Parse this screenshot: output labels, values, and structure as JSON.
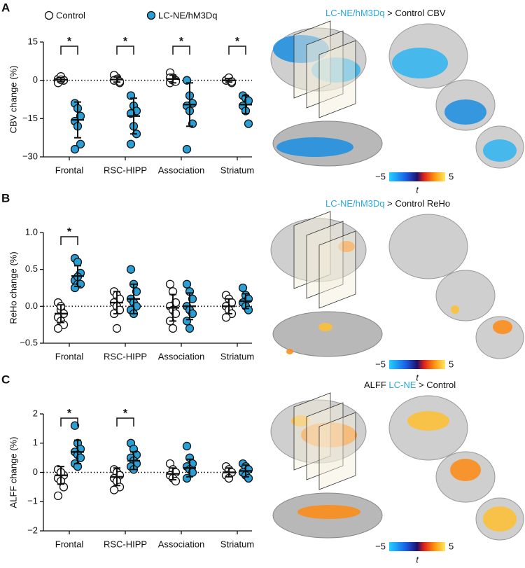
{
  "chart_data": [
    {
      "type": "strip",
      "panel": "A",
      "ylabel": "CBV change (%)",
      "categories": [
        "Frontal",
        "RSC-HIPP",
        "Association",
        "Striatum"
      ],
      "ylim": [
        -30,
        15
      ],
      "yticks": [
        15,
        0,
        {
          "value": -15,
          "label": "−15"
        },
        {
          "value": -30,
          "label": "−30"
        }
      ],
      "series": [
        {
          "name": "Control",
          "color": "#ffffff",
          "values": [
            [
              0.5,
              1,
              0,
              -0.5,
              1.5,
              0,
              -1,
              0.2
            ],
            [
              0,
              1,
              -1,
              2,
              0.5,
              -0.5,
              0
            ],
            [
              3,
              1,
              0,
              -1,
              0,
              -0.5,
              1
            ],
            [
              0,
              0.5,
              -1,
              0,
              1,
              -0.5
            ]
          ],
          "mean": [
            0.2,
            0.3,
            0.5,
            0
          ],
          "sd": [
            0.8,
            1,
            1.5,
            0.7
          ]
        },
        {
          "name": "LC-NE/hM3Dq",
          "color": "#2a9fd6",
          "values": [
            [
              -9,
              -11,
              -14,
              -16,
              -18,
              -25,
              -27
            ],
            [
              -6,
              -10,
              -12,
              -13,
              -18,
              -21,
              -25
            ],
            [
              0,
              -6,
              -9,
              -10,
              -12,
              -17,
              -27
            ],
            [
              -6,
              -7,
              -8,
              -10,
              -12,
              -17
            ]
          ],
          "mean": [
            -15.5,
            -14,
            -9.5,
            -9.5
          ],
          "sd": [
            7,
            7,
            8.5,
            3.5
          ]
        }
      ],
      "annotations": [
        "*",
        "*",
        "*",
        "*"
      ],
      "map_title": [
        {
          "text": "LC-NE/hM3Dq",
          "color": "#29a8e0"
        },
        {
          "text": " > Control CBV",
          "color": "#111111"
        }
      ],
      "colorbar": {
        "min": {
          "value": -5,
          "label": "−5"
        },
        "max": 5,
        "label": "t"
      }
    },
    {
      "type": "strip",
      "panel": "B",
      "ylabel": "ReHo change (%)",
      "categories": [
        "Frontal",
        "RSC-HIPP",
        "Association",
        "Striatum"
      ],
      "ylim": [
        -0.5,
        1.0
      ],
      "yticks": [
        {
          "value": 1,
          "label": "1.0"
        },
        0.5,
        {
          "value": 0,
          "label": "0.0"
        },
        {
          "value": -0.5,
          "label": "−0.5"
        }
      ],
      "series": [
        {
          "color": "#ffffff",
          "values": [
            [
              0.05,
              -0.05,
              -0.1,
              -0.15,
              -0.2,
              -0.25,
              -0.3,
              0.0
            ],
            [
              0.2,
              0.15,
              0.1,
              0.05,
              0.0,
              -0.05,
              -0.1,
              -0.3
            ],
            [
              0.3,
              0.2,
              0.05,
              0.0,
              -0.05,
              -0.1,
              -0.2,
              -0.3
            ],
            [
              0.15,
              0.1,
              0.05,
              0.0,
              -0.05,
              -0.1,
              -0.15
            ]
          ],
          "mean": [
            -0.1,
            0.05,
            -0.02,
            0.0
          ],
          "sd": [
            0.12,
            0.15,
            0.18,
            0.1
          ]
        },
        {
          "color": "#2a9fd6",
          "values": [
            [
              0.65,
              0.6,
              0.45,
              0.35,
              0.3,
              0.3,
              0.25,
              0.4
            ],
            [
              0.5,
              0.3,
              0.2,
              0.1,
              0.05,
              0.0,
              -0.05,
              -0.1
            ],
            [
              0.3,
              0.2,
              0.1,
              0.0,
              -0.05,
              -0.1,
              -0.2,
              -0.3
            ],
            [
              0.25,
              0.15,
              0.1,
              0.05,
              0.0,
              -0.05
            ]
          ],
          "mean": [
            0.41,
            0.1,
            0.0,
            0.07
          ],
          "sd": [
            0.14,
            0.2,
            0.18,
            0.1
          ]
        }
      ],
      "annotations": [
        "*",
        null,
        null,
        null
      ],
      "map_title": [
        {
          "text": "LC-NE/hM3Dq",
          "color": "#29a8e0"
        },
        {
          "text": " > Control ReHo",
          "color": "#111111"
        }
      ],
      "colorbar": {
        "min": {
          "value": -5,
          "label": "−5"
        },
        "max": 5,
        "label": "t"
      }
    },
    {
      "type": "strip",
      "panel": "C",
      "ylabel": "ALFF change (%)",
      "categories": [
        "Frontal",
        "RSC-HIPP",
        "Association",
        "Striatum"
      ],
      "ylim": [
        -2,
        2
      ],
      "yticks": [
        2,
        1,
        0,
        {
          "value": -1,
          "label": "−1"
        },
        {
          "value": -2,
          "label": "−2"
        }
      ],
      "series": [
        {
          "color": "#ffffff",
          "values": [
            [
              0.1,
              0,
              -0.1,
              -0.2,
              -0.3,
              -0.5,
              -0.8,
              0.0
            ],
            [
              0.1,
              0,
              -0.1,
              -0.2,
              -0.3,
              -0.5,
              -0.6
            ],
            [
              0.3,
              0.1,
              0,
              -0.1,
              -0.2,
              -0.3
            ],
            [
              0.2,
              0.1,
              0,
              -0.1,
              -0.2
            ]
          ],
          "mean": [
            -0.1,
            -0.15,
            -0.05,
            0
          ],
          "sd": [
            0.3,
            0.3,
            0.2,
            0.15
          ]
        },
        {
          "color": "#2a9fd6",
          "values": [
            [
              1.6,
              1.0,
              0.8,
              0.7,
              0.6,
              0.5,
              0.3,
              0.2
            ],
            [
              1.0,
              0.8,
              0.6,
              0.5,
              0.4,
              0.3,
              0.2,
              0.1
            ],
            [
              0.9,
              0.5,
              0.3,
              0.2,
              0.1,
              0,
              -0.2
            ],
            [
              0.3,
              0.2,
              0.1,
              0,
              -0.1,
              -0.2
            ]
          ],
          "mean": [
            0.7,
            0.4,
            0.15,
            0.05
          ],
          "sd": [
            0.4,
            0.3,
            0.3,
            0.2
          ]
        }
      ],
      "annotations": [
        "*",
        "*",
        null,
        null
      ],
      "map_title": [
        {
          "text": "ALFF ",
          "color": "#111111"
        },
        {
          "text": "LC-NE",
          "color": "#29a8e0"
        },
        {
          "text": " > Control",
          "color": "#111111"
        }
      ],
      "colorbar": {
        "min": {
          "value": -5,
          "label": "−5"
        },
        "max": 5,
        "label": "t"
      }
    }
  ]
}
